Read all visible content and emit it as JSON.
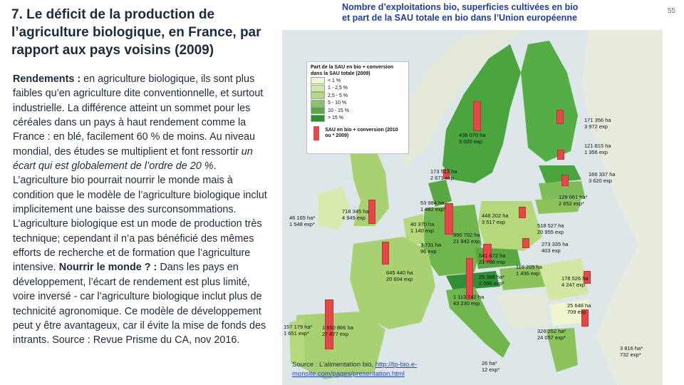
{
  "slide": {
    "title": "7. Le déficit de la production de l’agriculture biologique, en France, par rapport aux pays voisins (2009)",
    "page_number": "55",
    "body": {
      "p1_bold": "Rendements :",
      "p1_text": " en agriculture biologique, ils sont plus faibles qu’en agriculture dite conventionnelle, et surtout industrielle. La différence atteint un sommet pour les céréales dans un pays à haut rendement comme la France : en blé, facilement 60 % de moins. Au niveau mondial, des études se multiplient et font ressortir ",
      "p1_italic": "un écart qui est globalement de l’ordre de 20 %",
      "p1_after": ". L’agriculture bio pourrait nourrir le monde mais à condition que le modèle de l’agriculture biologique inclut implicitement une baisse des surconsommations. L’agriculture biologique est un mode de production très technique; cependant il n’a pas bénéficié des mêmes efforts de recherche et de formation que l’agriculture intensive. ",
      "p2_bold": "Nourrir le monde ? :",
      "p2_text": " Dans les pays en développement, l’écart de rendement est plus limité, voire inversé - car l’agriculture biologique inclut plus de technicité agronomique. Ce modèle de développement peut y être avantageux, car il évite la mise de fonds des intrants. Source : Revue Prisme du CA, nov 2016."
    }
  },
  "map": {
    "title_line1": "Nombre d’exploitations bio, superficies cultivées en bio",
    "title_line2": "et part de la SAU totale en bio dans l’Union européenne",
    "legend": {
      "title": "Part de la SAU en bio + conversion dans la SAU totale (2009)",
      "classes": [
        {
          "label": "< 1 %",
          "color": "#eef5cf"
        },
        {
          "label": "1 - 2,5 %",
          "color": "#d3e8a2"
        },
        {
          "label": "2,5 - 5 %",
          "color": "#b5d97a"
        },
        {
          "label": "5 - 10 %",
          "color": "#8cc35a"
        },
        {
          "label": "10 - 15 %",
          "color": "#5aa842"
        },
        {
          "label": "> 15 %",
          "color": "#2f8f35"
        }
      ],
      "bar_label": "SAU en bio + conversion (2010 ou * 2009)"
    },
    "labels": [
      {
        "text": "438 070 ha\n5 000 exp"
      },
      {
        "text": "171 356 ha\n3 972 exp"
      },
      {
        "text": "121 815 ha\n1 356 exp"
      },
      {
        "text": "173 513 ha\n2 671 exp"
      },
      {
        "text": "166 337 ha\n3 620 exp"
      },
      {
        "text": "129 061 ha*\n2 652 exp*"
      },
      {
        "text": "53 984 ha\n1 482 exp*"
      },
      {
        "text": "46 165 ha*\n1 548 exp*"
      },
      {
        "text": "718 345 ha\n4 949 exp"
      },
      {
        "text": "448 202 ha\n3 517 exp"
      },
      {
        "text": "518 527 ha\n20 955 exp"
      },
      {
        "text": "40 370 ha\n1 140 exp"
      },
      {
        "text": "990 702 ha\n21 942 exp"
      },
      {
        "text": "3 731 ha\n96 exp"
      },
      {
        "text": "273 335 ha\n403 exp"
      },
      {
        "text": "541 672 ha\n21 708 exp"
      },
      {
        "text": "645 440 ha\n20 604 exp"
      },
      {
        "text": "29 388 ha*\n2 096 exp*"
      },
      {
        "text": "119 205 ha\n1 436 exp"
      },
      {
        "text": "178 526 ha\n4 247 exp"
      },
      {
        "text": "1 113 742 ha\n43 230 exp"
      },
      {
        "text": "25 648 ha\n709 exp"
      },
      {
        "text": "157 179 ha*\n1 651 exp*"
      },
      {
        "text": "1 650 866 ha\n27 877 exp"
      },
      {
        "text": "326 252 ha*\n24 057 exp*"
      },
      {
        "text": "3 816 ha*\n732 exp*"
      },
      {
        "text": "26 ha*\n12 exp*"
      }
    ],
    "source_prefix": "Source : L’alimentation bio, ",
    "source_link": "http://tp-bio.e-monsite.com/pages/presentation.html"
  }
}
